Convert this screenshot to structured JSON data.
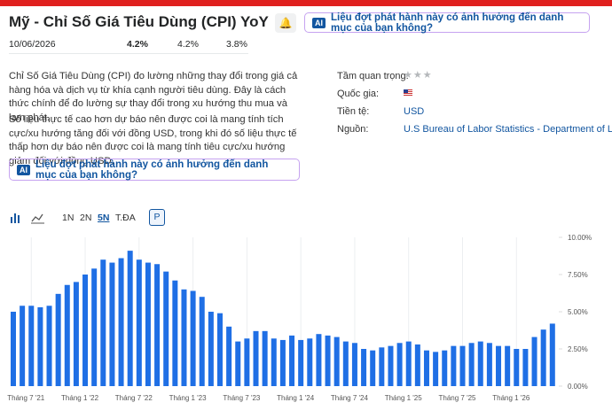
{
  "header": {
    "title": "Mỹ - Chỉ Số Giá Tiêu Dùng (CPI) YoY",
    "ai_prompt": "Liệu đợt phát hành này có ảnh hưởng đến danh mục của bạn không?",
    "release_date": "10/06/2026",
    "actual": "4.2%",
    "forecast": "4.2%",
    "previous": "3.8%"
  },
  "description": {
    "paragraphs": [
      "Chỉ Số Giá Tiêu Dùng (CPI) đo lường những thay đổi trong giá cả hàng hóa và dịch vụ từ khía cạnh người tiêu dùng. Đây là cách thức chính để đo lường sự thay đổi trong xu hướng thu mua và lạm phát.",
      "Số liệu thực tế cao hơn dự báo nên được coi là mang tính tích cực/xu hướng tăng đối với đồng USD, trong khi đó số liệu thực tế thấp hơn dự báo nên được coi là mang tính tiêu cực/xu hướng giảm đối với đồng USD."
    ],
    "ai_prompt": "Liệu đợt phát hành này có ảnh hưởng đến danh mục của bạn không?"
  },
  "details": {
    "importance_label": "Tầm quan trọng:",
    "country_label": "Quốc gia:",
    "currency_label": "Tiền tệ:",
    "currency": "USD",
    "source_label": "Nguồn:",
    "source": "U.S Bureau of Labor Statistics - Department of Labor"
  },
  "toolbar": {
    "ranges": [
      "1N",
      "2N",
      "5N",
      "T.ĐA"
    ],
    "percent_button": "P"
  },
  "chart_data": {
    "type": "bar",
    "color": "#1f6fe5",
    "categories": [
      null,
      null,
      "Tháng 7 '21",
      null,
      null,
      null,
      null,
      null,
      "Tháng 1 '22",
      null,
      null,
      null,
      null,
      null,
      "Tháng 7 '22",
      null,
      null,
      null,
      null,
      null,
      "Tháng 1 '23",
      null,
      null,
      null,
      null,
      null,
      "Tháng 7 '23",
      null,
      null,
      null,
      null,
      null,
      "Tháng 1 '24",
      null,
      null,
      null,
      null,
      null,
      "Tháng 7 '24",
      null,
      null,
      null,
      null,
      null,
      "Tháng 1 '25",
      null,
      null,
      null,
      null,
      null,
      "Tháng 7 '25",
      null,
      null,
      null,
      null,
      null,
      "Tháng 1 '26",
      null,
      null,
      null,
      null
    ],
    "values": [
      5.0,
      5.4,
      5.4,
      5.3,
      5.4,
      6.2,
      6.8,
      7.0,
      7.5,
      7.9,
      8.5,
      8.3,
      8.6,
      9.1,
      8.5,
      8.3,
      8.2,
      7.7,
      7.1,
      6.5,
      6.4,
      6.0,
      5.0,
      4.9,
      4.0,
      3.0,
      3.2,
      3.7,
      3.7,
      3.2,
      3.1,
      3.4,
      3.1,
      3.2,
      3.5,
      3.4,
      3.3,
      3.0,
      2.9,
      2.5,
      2.4,
      2.6,
      2.7,
      2.9,
      3.0,
      2.8,
      2.4,
      2.3,
      2.4,
      2.7,
      2.7,
      2.9,
      3.0,
      2.9,
      2.7,
      2.7,
      2.5,
      2.5,
      3.3,
      3.8,
      4.2
    ],
    "ylim": [
      0,
      10
    ],
    "yticks": [
      {
        "value": 0,
        "label": "0.00%"
      },
      {
        "value": 2.5,
        "label": "2.50%"
      },
      {
        "value": 5,
        "label": "5.00%"
      },
      {
        "value": 7.5,
        "label": "7.50%"
      },
      {
        "value": 10,
        "label": "10.00%"
      }
    ]
  }
}
